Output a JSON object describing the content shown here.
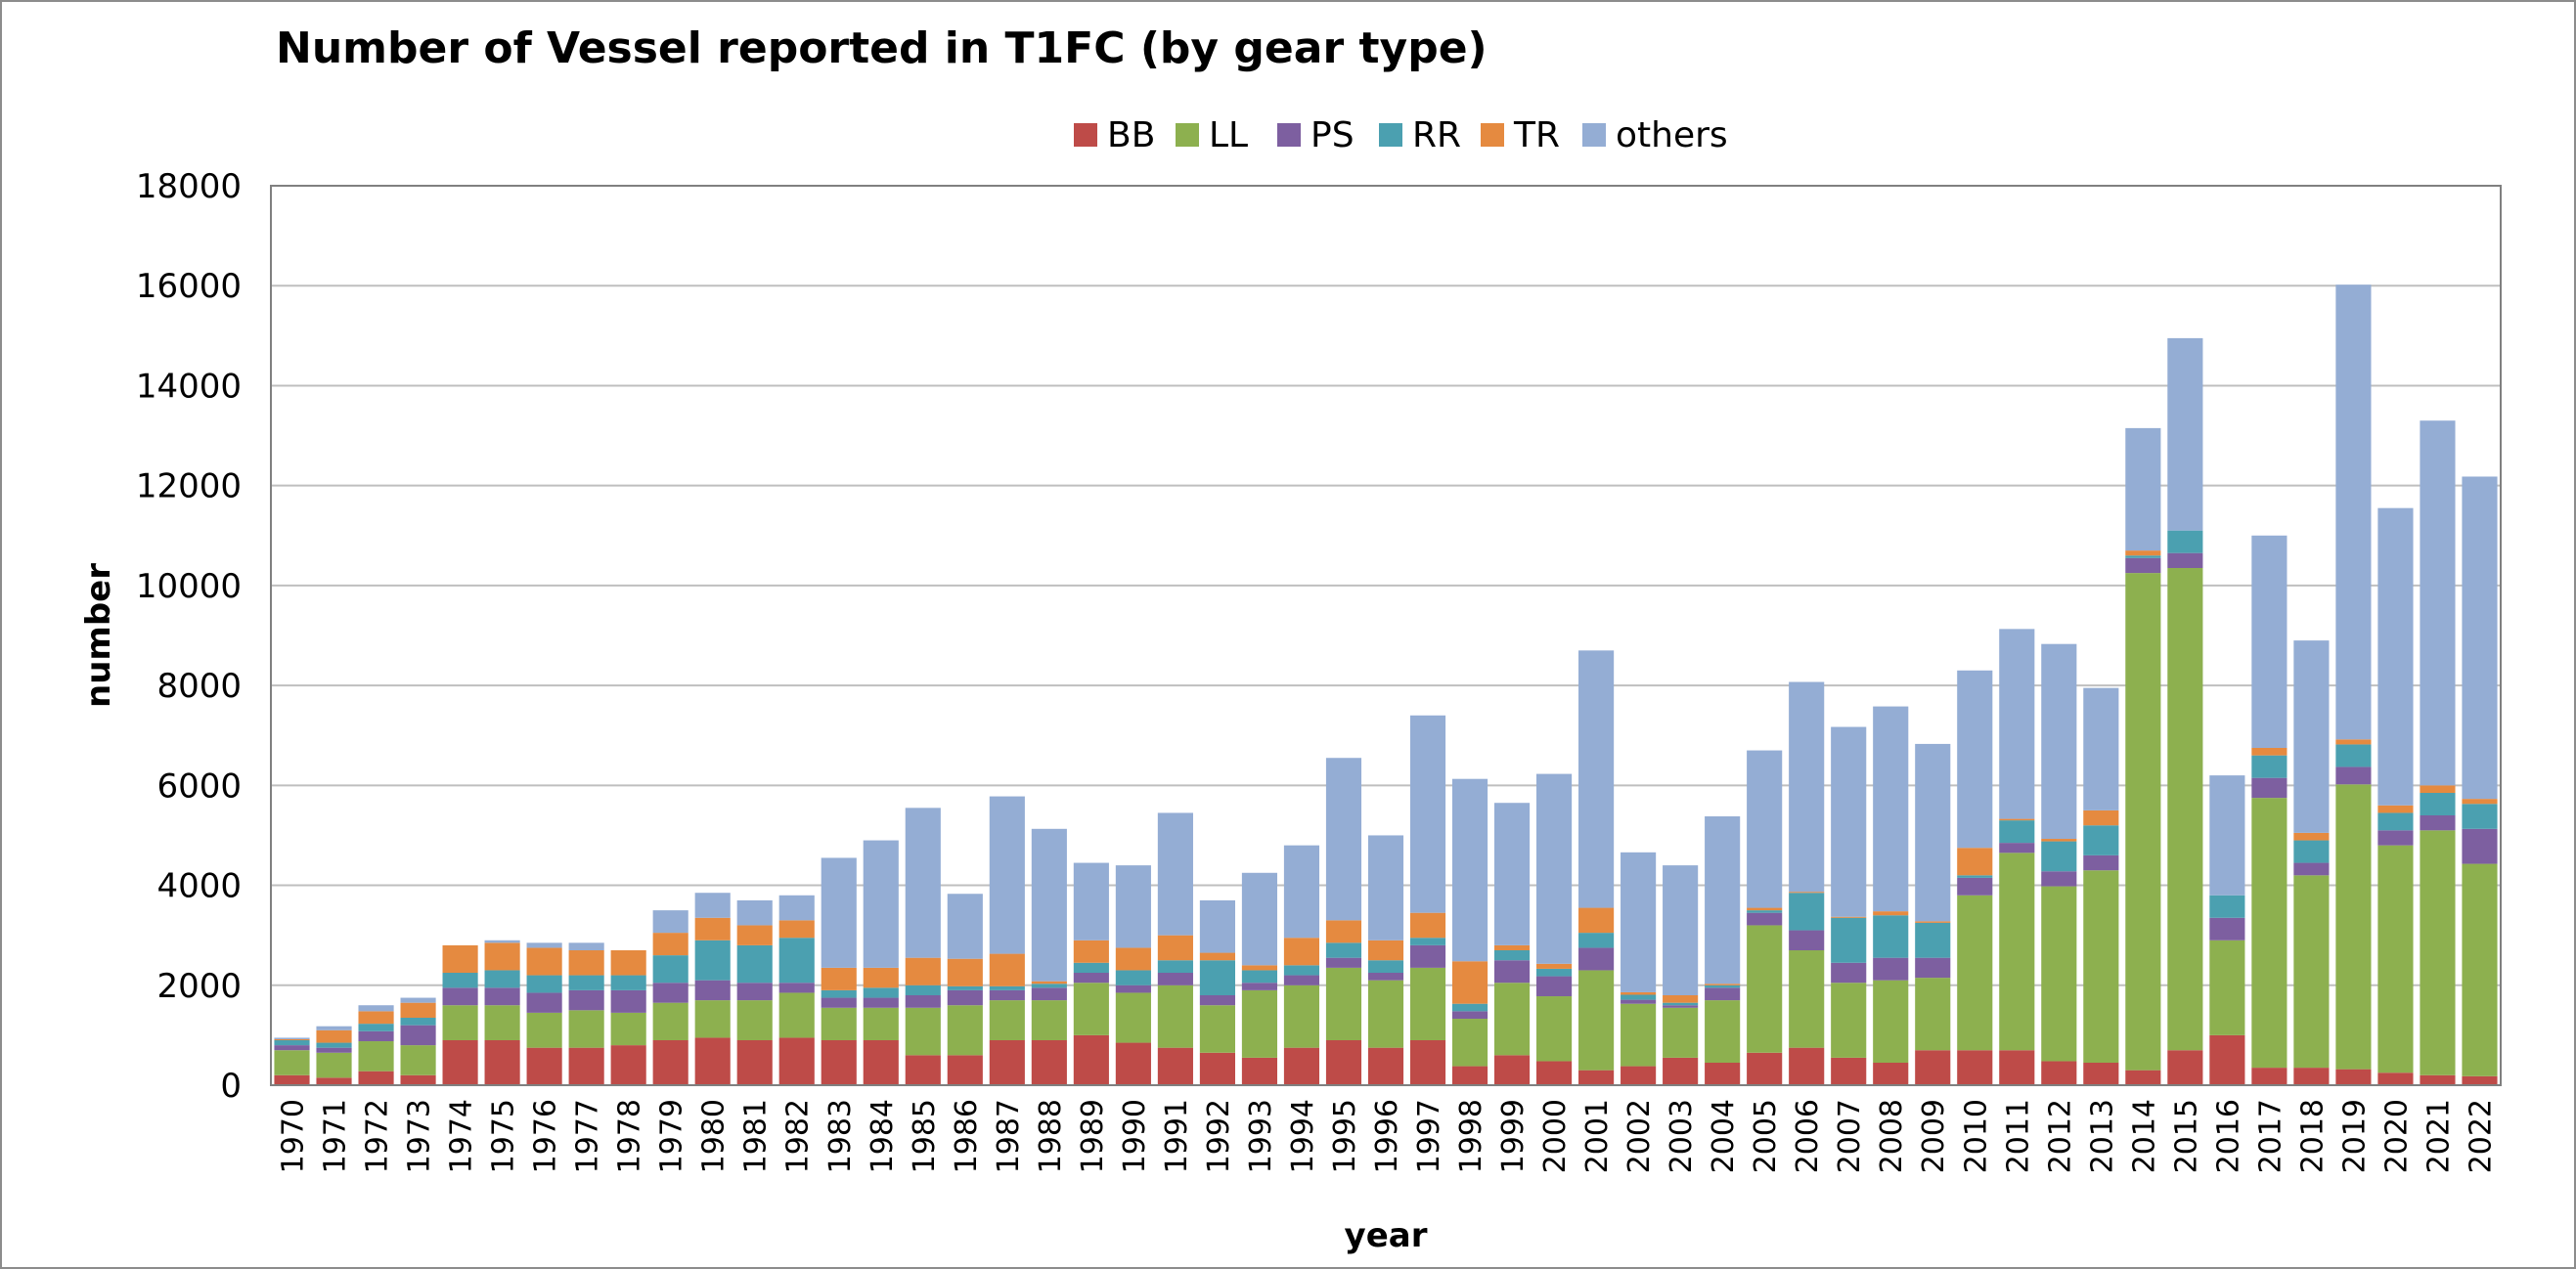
{
  "chart_data": {
    "type": "bar",
    "stacked": true,
    "title": "Number of Vessel reported in T1FC (by gear type)",
    "xlabel": "year",
    "ylabel": "number",
    "ylim": [
      0,
      18000
    ],
    "yticks": [
      0,
      2000,
      4000,
      6000,
      8000,
      10000,
      12000,
      14000,
      16000,
      18000
    ],
    "grid": true,
    "legend_position": "top",
    "categories": [
      "1970",
      "1971",
      "1972",
      "1973",
      "1974",
      "1975",
      "1976",
      "1977",
      "1978",
      "1979",
      "1980",
      "1981",
      "1982",
      "1983",
      "1984",
      "1985",
      "1986",
      "1987",
      "1988",
      "1989",
      "1990",
      "1991",
      "1992",
      "1993",
      "1994",
      "1995",
      "1996",
      "1997",
      "1998",
      "1999",
      "2000",
      "2001",
      "2002",
      "2003",
      "2004",
      "2005",
      "2006",
      "2007",
      "2008",
      "2009",
      "2010",
      "2011",
      "2012",
      "2013",
      "2014",
      "2015",
      "2016",
      "2017",
      "2018",
      "2019",
      "2020",
      "2021",
      "2022"
    ],
    "series": [
      {
        "name": "BB",
        "color": "#BE4B48",
        "values": [
          200,
          150,
          280,
          200,
          900,
          900,
          750,
          750,
          800,
          900,
          950,
          900,
          950,
          900,
          900,
          600,
          600,
          900,
          900,
          1000,
          850,
          750,
          650,
          550,
          750,
          900,
          750,
          900,
          380,
          600,
          480,
          300,
          380,
          550,
          450,
          650,
          750,
          550,
          450,
          700,
          700,
          700,
          480,
          450,
          300,
          700,
          1000,
          350,
          350,
          320,
          250,
          200,
          180
        ]
      },
      {
        "name": "LL",
        "color": "#8DB04F",
        "values": [
          500,
          500,
          600,
          600,
          700,
          700,
          700,
          750,
          650,
          750,
          750,
          800,
          900,
          650,
          650,
          950,
          1000,
          800,
          800,
          1050,
          1000,
          1250,
          950,
          1350,
          1250,
          1450,
          1350,
          1450,
          950,
          1450,
          1300,
          2000,
          1250,
          1000,
          1250,
          2550,
          1950,
          1500,
          1650,
          1450,
          3100,
          3950,
          3500,
          3850,
          9950,
          9650,
          1900,
          5400,
          3850,
          5700,
          4550,
          4900,
          4250
        ]
      },
      {
        "name": "PS",
        "color": "#7D5FA0",
        "values": [
          100,
          100,
          200,
          400,
          350,
          350,
          400,
          400,
          450,
          400,
          400,
          350,
          200,
          200,
          200,
          250,
          300,
          200,
          250,
          200,
          150,
          250,
          200,
          150,
          200,
          200,
          150,
          450,
          150,
          450,
          400,
          450,
          80,
          50,
          250,
          250,
          400,
          400,
          450,
          400,
          350,
          200,
          300,
          300,
          300,
          300,
          450,
          400,
          250,
          350,
          300,
          300,
          700
        ]
      },
      {
        "name": "RR",
        "color": "#4BA0B0",
        "values": [
          100,
          100,
          150,
          150,
          300,
          350,
          350,
          300,
          300,
          550,
          800,
          750,
          900,
          150,
          200,
          200,
          80,
          80,
          80,
          200,
          300,
          250,
          700,
          250,
          200,
          300,
          250,
          150,
          150,
          200,
          150,
          300,
          100,
          50,
          50,
          50,
          750,
          900,
          850,
          700,
          50,
          450,
          600,
          600,
          50,
          450,
          450,
          450,
          450,
          450,
          350,
          450,
          500
        ]
      },
      {
        "name": "TR",
        "color": "#E58A40",
        "values": [
          20,
          250,
          250,
          300,
          550,
          550,
          550,
          500,
          500,
          450,
          450,
          400,
          350,
          450,
          400,
          550,
          550,
          650,
          50,
          450,
          450,
          500,
          150,
          100,
          550,
          450,
          400,
          500,
          850,
          100,
          100,
          500,
          50,
          150,
          30,
          50,
          20,
          20,
          80,
          30,
          550,
          30,
          50,
          300,
          100,
          0,
          0,
          150,
          150,
          100,
          150,
          150,
          100
        ]
      },
      {
        "name": "others",
        "color": "#94ADD4",
        "values": [
          30,
          80,
          120,
          100,
          0,
          50,
          100,
          150,
          0,
          450,
          500,
          500,
          500,
          2200,
          2550,
          3000,
          1300,
          3150,
          3050,
          1550,
          1650,
          2450,
          1050,
          1850,
          1850,
          3250,
          2100,
          3950,
          3650,
          2850,
          3800,
          5150,
          2800,
          2600,
          3350,
          3150,
          4200,
          3800,
          4100,
          3550,
          3550,
          3800,
          3900,
          2450,
          2450,
          3850,
          2400,
          4250,
          3850,
          9100,
          5950,
          7300,
          6450
        ]
      }
    ]
  }
}
